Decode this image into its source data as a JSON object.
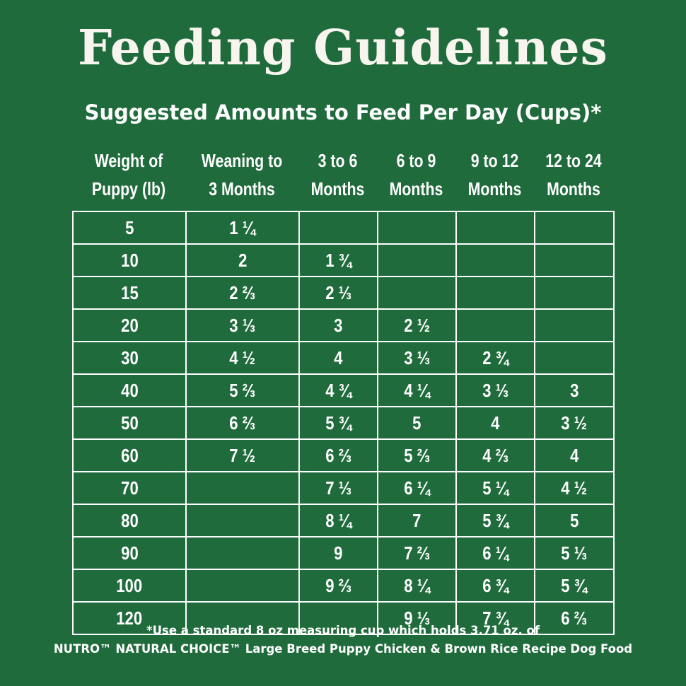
{
  "title": "Feeding Guidelines",
  "subtitle": "Suggested Amounts to Feed Per Day (Cups)*",
  "columns": [
    {
      "line1": "Weight of",
      "line2": "Puppy (lb)"
    },
    {
      "line1": "Weaning to",
      "line2": "3 Months"
    },
    {
      "line1": "3 to 6",
      "line2": "Months"
    },
    {
      "line1": "6 to 9",
      "line2": "Months"
    },
    {
      "line1": "9 to 12",
      "line2": "Months"
    },
    {
      "line1": "12 to 24",
      "line2": "Months"
    }
  ],
  "rows": [
    [
      "5",
      "1 ¼",
      "",
      "",
      "",
      ""
    ],
    [
      "10",
      "2",
      "1 ¾",
      "",
      "",
      ""
    ],
    [
      "15",
      "2 ⅔",
      "2 ⅓",
      "",
      "",
      ""
    ],
    [
      "20",
      "3 ⅓",
      "3",
      "2 ½",
      "",
      ""
    ],
    [
      "30",
      "4 ½",
      "4",
      "3 ⅓",
      "2 ¾",
      ""
    ],
    [
      "40",
      "5 ⅔",
      "4 ¾",
      "4 ¼",
      "3 ⅓",
      "3"
    ],
    [
      "50",
      "6 ⅔",
      "5 ¾",
      "5",
      "4",
      "3 ½"
    ],
    [
      "60",
      "7 ½",
      "6 ⅔",
      "5 ⅔",
      "4 ⅔",
      "4"
    ],
    [
      "70",
      "",
      "7 ⅓",
      "6 ¼",
      "5 ¼",
      "4 ½"
    ],
    [
      "80",
      "",
      "8 ¼",
      "7",
      "5 ¾",
      "5"
    ],
    [
      "90",
      "",
      "9",
      "7 ⅔",
      "6 ¼",
      "5 ⅓"
    ],
    [
      "100",
      "",
      "9 ⅔",
      "8 ¼",
      "6 ¾",
      "5 ¾"
    ],
    [
      "120",
      "",
      "",
      "9 ⅓",
      "7 ¾",
      "6 ⅔"
    ]
  ],
  "footnote_line1": "*Use a standard 8 oz measuring cup which holds 3.71 oz. of",
  "footnote_line2": "NUTRO™ NATURAL CHOICE™ Large Breed Puppy Chicken & Brown Rice Recipe Dog Food",
  "colors": {
    "background": "#1f6b3c",
    "text": "#ffffff"
  }
}
